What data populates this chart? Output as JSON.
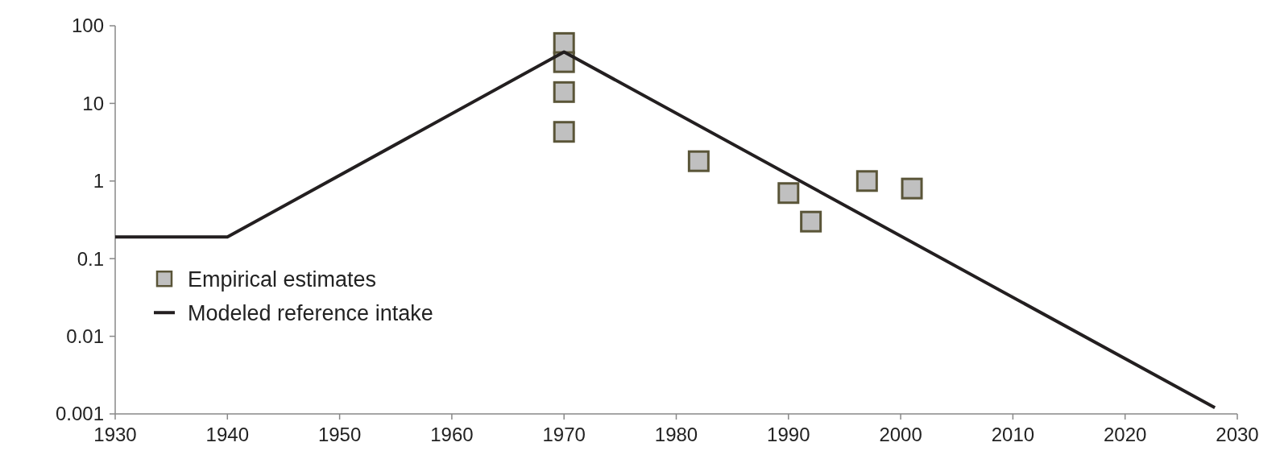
{
  "chart_data": {
    "type": "line",
    "log": "y",
    "xlim": [
      1930,
      2030
    ],
    "xticks": [
      1930,
      1940,
      1950,
      1960,
      1970,
      1980,
      1990,
      2000,
      2010,
      2020,
      2030
    ],
    "ylim": [
      0.001,
      100
    ],
    "yticks": [
      0.001,
      0.01,
      0.1,
      1,
      10,
      100
    ],
    "grid": false,
    "legend": "bottom left",
    "series": [
      {
        "name": "Empirical estimates",
        "type": "scatter",
        "marker": "square",
        "color": "#c0c0c0",
        "x": [
          1970,
          1970,
          1970,
          1970,
          1982,
          1990,
          1992,
          1997,
          2001
        ],
        "values": [
          60,
          34,
          14,
          4.3,
          1.8,
          0.7,
          0.3,
          1.0,
          0.8
        ]
      },
      {
        "name": "Modeled reference intake",
        "type": "line",
        "marker": "none",
        "line_style": "solid",
        "color": "#231f20",
        "x": [
          1930,
          1940,
          1970,
          2028
        ],
        "values": [
          0.19,
          0.19,
          46,
          0.0012
        ]
      }
    ]
  }
}
